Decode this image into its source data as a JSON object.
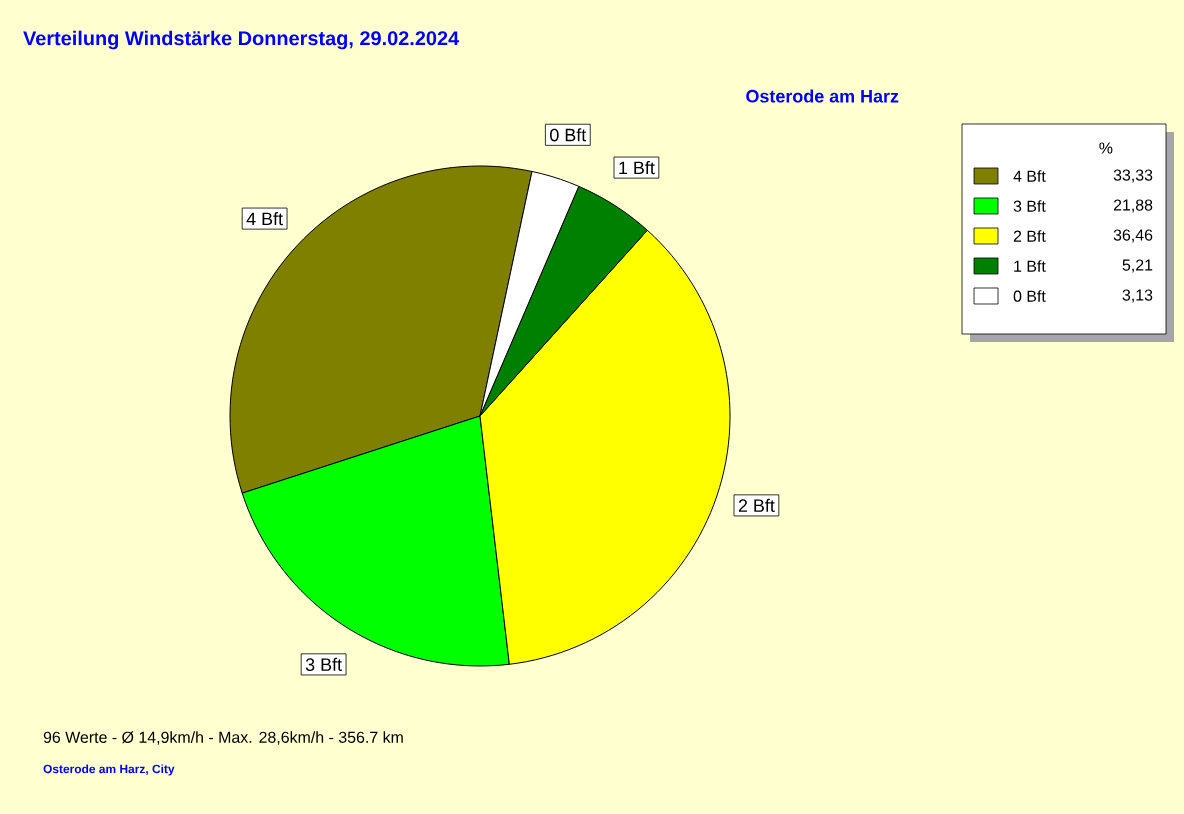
{
  "chart_data": {
    "type": "pie",
    "title": "Verteilung Windstärke  Donnerstag, 29.02.2024",
    "subtitle": "Osterode am Harz",
    "categories": [
      "4 Bft",
      "3 Bft",
      "2 Bft",
      "1 Bft",
      "0 Bft"
    ],
    "values": [
      33.33,
      21.88,
      36.46,
      5.21,
      3.13
    ],
    "value_labels": [
      "33,33",
      "21,88",
      "36,46",
      "5,21",
      "3,13"
    ],
    "colors": [
      "#808000",
      "#00ff00",
      "#ffff00",
      "#008000",
      "#ffffff"
    ],
    "legend_title": "%",
    "legend": "top right",
    "annotations": [
      "96 Werte   -   Ø 14,9km/h  -  Max. 28,6km/h   -   356.7 km",
      "Osterode am Harz, City"
    ]
  }
}
